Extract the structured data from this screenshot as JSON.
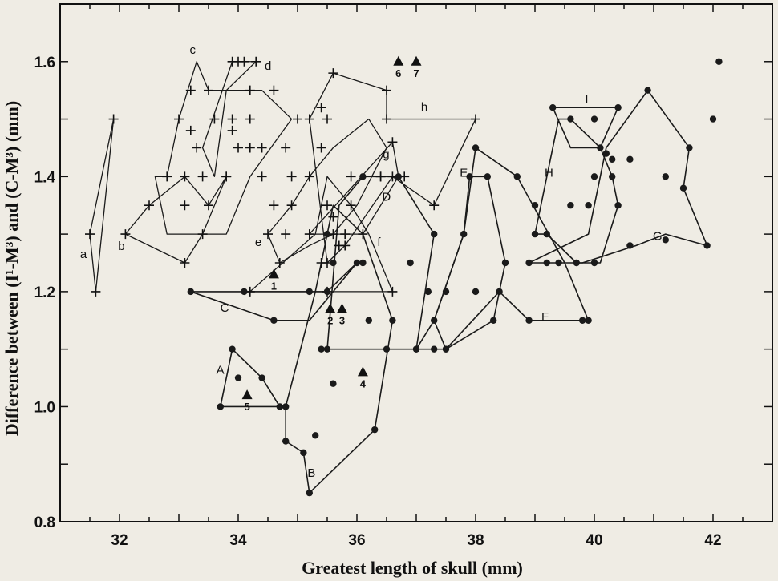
{
  "chart_data": {
    "type": "scatter",
    "xlabel": "Greatest length of skull (mm)",
    "ylabel": "Difference between (I¹-M³) and (C-M³) (mm)",
    "xlim": [
      31,
      43
    ],
    "ylim": [
      0.8,
      1.7
    ],
    "x_ticks": [
      32,
      34,
      36,
      38,
      40,
      42
    ],
    "y_ticks": [
      0.8,
      1.0,
      1.2,
      1.4,
      1.6
    ],
    "y_tick_labels": [
      "0.8",
      "1.0",
      "1.2",
      "1.4",
      "1.6"
    ],
    "grid": false,
    "cross_groups": [
      {
        "label": "a",
        "hull": [
          [
            31.5,
            1.3
          ],
          [
            31.9,
            1.5
          ],
          [
            31.6,
            1.2
          ]
        ],
        "points": [
          [
            31.5,
            1.3
          ],
          [
            31.9,
            1.5
          ],
          [
            31.6,
            1.2
          ]
        ]
      },
      {
        "label": "b",
        "hull": [
          [
            32.1,
            1.3
          ],
          [
            32.5,
            1.35
          ],
          [
            33.1,
            1.4
          ],
          [
            33.5,
            1.35
          ],
          [
            33.8,
            1.4
          ],
          [
            33.4,
            1.3
          ],
          [
            33.1,
            1.25
          ]
        ],
        "points": [
          [
            32.1,
            1.3
          ],
          [
            32.5,
            1.35
          ],
          [
            33.1,
            1.4
          ],
          [
            33.5,
            1.35
          ],
          [
            33.4,
            1.3
          ],
          [
            33.1,
            1.25
          ],
          [
            33.8,
            1.4
          ]
        ]
      },
      {
        "label": "c",
        "hull": [
          [
            32.6,
            1.4
          ],
          [
            32.8,
            1.3
          ],
          [
            33.8,
            1.3
          ],
          [
            34.2,
            1.4
          ],
          [
            34.9,
            1.5
          ],
          [
            34.4,
            1.55
          ],
          [
            33.5,
            1.55
          ],
          [
            33.3,
            1.6
          ],
          [
            33.0,
            1.5
          ],
          [
            32.8,
            1.4
          ]
        ],
        "points": [
          [
            33.0,
            1.5
          ],
          [
            33.2,
            1.55
          ],
          [
            33.3,
            1.45
          ],
          [
            33.5,
            1.55
          ],
          [
            33.6,
            1.5
          ],
          [
            33.2,
            1.48
          ],
          [
            33.9,
            1.5
          ],
          [
            34.2,
            1.5
          ],
          [
            33.1,
            1.35
          ],
          [
            32.8,
            1.4
          ],
          [
            33.4,
            1.4
          ],
          [
            33.8,
            1.4
          ]
        ]
      },
      {
        "label": "d",
        "hull": [
          [
            33.4,
            1.45
          ],
          [
            33.9,
            1.6
          ],
          [
            34.0,
            1.6
          ],
          [
            34.1,
            1.6
          ],
          [
            34.3,
            1.6
          ],
          [
            33.8,
            1.55
          ],
          [
            33.6,
            1.4
          ]
        ],
        "points": [
          [
            33.9,
            1.6
          ],
          [
            34.0,
            1.6
          ],
          [
            34.1,
            1.6
          ],
          [
            34.3,
            1.6
          ],
          [
            34.2,
            1.55
          ],
          [
            33.9,
            1.48
          ],
          [
            34.0,
            1.45
          ],
          [
            34.2,
            1.45
          ]
        ]
      },
      {
        "label": "e",
        "hull": [
          [
            34.5,
            1.3
          ],
          [
            34.9,
            1.35
          ],
          [
            35.2,
            1.4
          ],
          [
            35.6,
            1.45
          ],
          [
            36.2,
            1.5
          ],
          [
            36.5,
            1.45
          ],
          [
            36.0,
            1.35
          ],
          [
            35.6,
            1.3
          ],
          [
            35.2,
            1.28
          ],
          [
            34.7,
            1.25
          ]
        ],
        "points": [
          [
            34.5,
            1.3
          ],
          [
            34.7,
            1.25
          ],
          [
            34.8,
            1.3
          ],
          [
            34.9,
            1.35
          ],
          [
            35.2,
            1.4
          ],
          [
            35.5,
            1.35
          ],
          [
            35.6,
            1.3
          ],
          [
            35.4,
            1.45
          ],
          [
            34.6,
            1.35
          ],
          [
            34.4,
            1.4
          ],
          [
            34.9,
            1.4
          ],
          [
            34.8,
            1.45
          ],
          [
            35.0,
            1.5
          ],
          [
            34.4,
            1.45
          ],
          [
            34.6,
            1.55
          ],
          [
            35.5,
            1.5
          ]
        ]
      },
      {
        "label": "f",
        "hull": [
          [
            34.2,
            1.2
          ],
          [
            36.6,
            1.2
          ],
          [
            36.2,
            1.3
          ],
          [
            35.9,
            1.35
          ],
          [
            35.5,
            1.4
          ],
          [
            35.3,
            1.3
          ]
        ],
        "points": [
          [
            34.2,
            1.2
          ],
          [
            35.5,
            1.2
          ],
          [
            36.6,
            1.2
          ],
          [
            35.8,
            1.3
          ],
          [
            36.1,
            1.3
          ],
          [
            35.9,
            1.35
          ],
          [
            35.7,
            1.28
          ],
          [
            35.6,
            1.33
          ],
          [
            35.4,
            1.25
          ]
        ]
      },
      {
        "label": "g",
        "hull": [
          [
            35.2,
            1.3
          ],
          [
            36.6,
            1.46
          ],
          [
            36.7,
            1.4
          ],
          [
            36.1,
            1.3
          ]
        ],
        "points": [
          [
            35.2,
            1.3
          ],
          [
            36.6,
            1.46
          ],
          [
            35.9,
            1.4
          ],
          [
            36.4,
            1.4
          ]
        ]
      },
      {
        "label": "h",
        "hull": [
          [
            35.2,
            1.5
          ],
          [
            35.6,
            1.58
          ],
          [
            36.5,
            1.55
          ],
          [
            36.5,
            1.5
          ],
          [
            38.0,
            1.5
          ],
          [
            37.3,
            1.35
          ],
          [
            36.6,
            1.4
          ],
          [
            35.8,
            1.28
          ],
          [
            35.5,
            1.25
          ]
        ],
        "points": [
          [
            35.2,
            1.5
          ],
          [
            35.4,
            1.52
          ],
          [
            35.6,
            1.58
          ],
          [
            36.5,
            1.55
          ],
          [
            36.5,
            1.5
          ],
          [
            38.0,
            1.5
          ],
          [
            37.3,
            1.35
          ],
          [
            36.8,
            1.4
          ],
          [
            36.6,
            1.4
          ],
          [
            36.4,
            1.4
          ],
          [
            35.5,
            1.25
          ],
          [
            35.8,
            1.28
          ]
        ]
      }
    ],
    "dot_groups": [
      {
        "label": "A",
        "hull": [
          [
            33.7,
            1.0
          ],
          [
            34.7,
            1.0
          ],
          [
            34.4,
            1.05
          ],
          [
            33.9,
            1.1
          ]
        ],
        "points": [
          [
            33.7,
            1.0
          ],
          [
            34.7,
            1.0
          ],
          [
            34.4,
            1.05
          ],
          [
            33.9,
            1.1
          ],
          [
            34.0,
            1.05
          ]
        ]
      },
      {
        "label": "B",
        "hull": [
          [
            34.8,
            0.94
          ],
          [
            35.1,
            0.92
          ],
          [
            35.2,
            0.85
          ],
          [
            36.3,
            0.96
          ],
          [
            36.6,
            1.15
          ],
          [
            36.1,
            1.3
          ],
          [
            35.6,
            1.35
          ],
          [
            35.3,
            1.2
          ],
          [
            34.8,
            1.0
          ]
        ],
        "points": [
          [
            34.8,
            0.94
          ],
          [
            35.1,
            0.92
          ],
          [
            35.2,
            0.85
          ],
          [
            35.3,
            0.95
          ],
          [
            36.3,
            0.96
          ],
          [
            36.6,
            1.15
          ],
          [
            35.6,
            1.04
          ],
          [
            35.4,
            1.1
          ],
          [
            35.5,
            1.2
          ],
          [
            36.1,
            1.25
          ],
          [
            35.6,
            1.25
          ],
          [
            35.5,
            1.3
          ],
          [
            34.8,
            1.0
          ]
        ]
      },
      {
        "label": "C",
        "hull": [
          [
            33.2,
            1.2
          ],
          [
            34.1,
            1.2
          ],
          [
            35.5,
            1.2
          ],
          [
            36.0,
            1.25
          ],
          [
            35.2,
            1.15
          ],
          [
            34.6,
            1.15
          ]
        ],
        "points": [
          [
            33.2,
            1.2
          ],
          [
            34.1,
            1.2
          ],
          [
            35.2,
            1.2
          ],
          [
            35.5,
            1.2
          ],
          [
            34.6,
            1.15
          ],
          [
            36.0,
            1.25
          ]
        ]
      },
      {
        "label": "D",
        "hull": [
          [
            35.5,
            1.1
          ],
          [
            36.5,
            1.1
          ],
          [
            37.0,
            1.1
          ],
          [
            37.3,
            1.3
          ],
          [
            36.7,
            1.4
          ],
          [
            36.1,
            1.4
          ],
          [
            35.7,
            1.35
          ]
        ],
        "points": [
          [
            35.5,
            1.1
          ],
          [
            36.2,
            1.15
          ],
          [
            36.5,
            1.1
          ],
          [
            36.1,
            1.4
          ],
          [
            36.7,
            1.4
          ],
          [
            37.3,
            1.3
          ],
          [
            36.9,
            1.25
          ],
          [
            37.2,
            1.2
          ],
          [
            37.0,
            1.1
          ]
        ]
      },
      {
        "label": "E",
        "hull": [
          [
            37.3,
            1.15
          ],
          [
            37.8,
            1.3
          ],
          [
            37.9,
            1.4
          ],
          [
            38.2,
            1.4
          ],
          [
            38.5,
            1.25
          ],
          [
            38.3,
            1.15
          ],
          [
            37.5,
            1.1
          ]
        ],
        "points": [
          [
            37.3,
            1.15
          ],
          [
            37.5,
            1.2
          ],
          [
            37.8,
            1.3
          ],
          [
            37.9,
            1.4
          ],
          [
            38.2,
            1.4
          ],
          [
            38.5,
            1.25
          ],
          [
            38.3,
            1.15
          ],
          [
            37.5,
            1.1
          ]
        ]
      },
      {
        "label": "F",
        "hull": [
          [
            37.0,
            1.1
          ],
          [
            37.5,
            1.1
          ],
          [
            38.4,
            1.2
          ],
          [
            38.9,
            1.15
          ],
          [
            39.9,
            1.15
          ],
          [
            39.5,
            1.25
          ],
          [
            38.7,
            1.4
          ],
          [
            38.0,
            1.45
          ],
          [
            37.8,
            1.3
          ],
          [
            37.3,
            1.15
          ]
        ],
        "points": [
          [
            37.0,
            1.1
          ],
          [
            37.3,
            1.1
          ],
          [
            37.5,
            1.1
          ],
          [
            38.0,
            1.2
          ],
          [
            38.4,
            1.2
          ],
          [
            38.9,
            1.15
          ],
          [
            39.2,
            1.25
          ],
          [
            39.9,
            1.15
          ],
          [
            39.8,
            1.15
          ],
          [
            38.7,
            1.4
          ],
          [
            38.0,
            1.45
          ]
        ]
      },
      {
        "label": "G",
        "hull": [
          [
            38.9,
            1.25
          ],
          [
            39.4,
            1.25
          ],
          [
            39.8,
            1.25
          ],
          [
            40.7,
            1.28
          ],
          [
            41.2,
            1.3
          ],
          [
            41.9,
            1.28
          ],
          [
            41.5,
            1.38
          ],
          [
            41.6,
            1.45
          ],
          [
            40.9,
            1.55
          ],
          [
            40.2,
            1.45
          ],
          [
            39.9,
            1.3
          ]
        ],
        "points": [
          [
            38.9,
            1.25
          ],
          [
            39.4,
            1.25
          ],
          [
            39.7,
            1.25
          ],
          [
            40.0,
            1.25
          ],
          [
            40.6,
            1.28
          ],
          [
            41.2,
            1.29
          ],
          [
            41.9,
            1.28
          ],
          [
            41.5,
            1.38
          ],
          [
            41.6,
            1.45
          ],
          [
            41.2,
            1.4
          ],
          [
            40.9,
            1.55
          ],
          [
            42.0,
            1.5
          ],
          [
            42.1,
            1.6
          ]
        ]
      },
      {
        "label": "H",
        "hull": [
          [
            39.0,
            1.3
          ],
          [
            39.4,
            1.5
          ],
          [
            39.6,
            1.5
          ],
          [
            40.1,
            1.45
          ],
          [
            40.3,
            1.4
          ],
          [
            40.4,
            1.35
          ],
          [
            40.1,
            1.25
          ],
          [
            39.7,
            1.25
          ],
          [
            39.2,
            1.3
          ]
        ],
        "points": [
          [
            39.0,
            1.3
          ],
          [
            39.0,
            1.35
          ],
          [
            39.2,
            1.3
          ],
          [
            39.6,
            1.5
          ],
          [
            40.1,
            1.45
          ],
          [
            40.3,
            1.4
          ],
          [
            40.4,
            1.35
          ],
          [
            39.9,
            1.35
          ],
          [
            39.6,
            1.35
          ],
          [
            40.0,
            1.4
          ],
          [
            40.2,
            1.44
          ],
          [
            40.3,
            1.43
          ],
          [
            40.6,
            1.43
          ]
        ]
      },
      {
        "label": "I",
        "hull": [
          [
            39.3,
            1.52
          ],
          [
            40.4,
            1.52
          ],
          [
            40.1,
            1.45
          ],
          [
            39.6,
            1.45
          ]
        ],
        "points": [
          [
            39.3,
            1.52
          ],
          [
            40.4,
            1.52
          ],
          [
            40.0,
            1.5
          ]
        ]
      }
    ],
    "specimens": [
      {
        "label": "1",
        "x": 34.6,
        "y": 1.23
      },
      {
        "label": "2",
        "x": 35.55,
        "y": 1.17
      },
      {
        "label": "3",
        "x": 35.75,
        "y": 1.17
      },
      {
        "label": "4",
        "x": 36.1,
        "y": 1.06
      },
      {
        "label": "5",
        "x": 34.15,
        "y": 1.02
      },
      {
        "label": "6",
        "x": 36.7,
        "y": 1.6
      },
      {
        "label": "7",
        "x": 37.0,
        "y": 1.6
      }
    ]
  }
}
